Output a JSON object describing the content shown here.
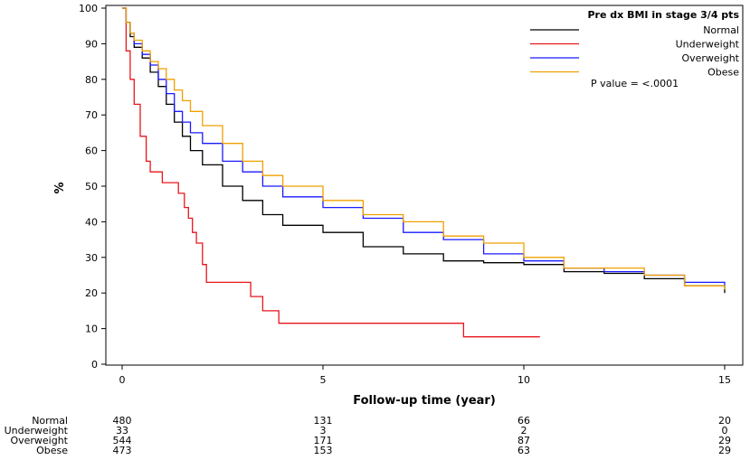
{
  "chart_data": {
    "type": "line",
    "subtype": "kaplan-meier survival curves (step)",
    "title": "",
    "xlabel": "Follow-up time (year)",
    "ylabel": "%",
    "xlim": [
      0,
      15
    ],
    "ylim": [
      0,
      100
    ],
    "xticks": [
      0,
      5,
      10,
      15
    ],
    "yticks": [
      0,
      10,
      20,
      30,
      40,
      50,
      60,
      70,
      80,
      90,
      100
    ],
    "legend": {
      "title": "Pre dx BMI in stage 3/4 pts",
      "placement": "top-right",
      "entries": [
        "Normal",
        "Underweight",
        "Overweight",
        "Obese"
      ]
    },
    "annotation": "P value = <.0001",
    "series": [
      {
        "name": "Normal",
        "color": "#000000",
        "points": [
          [
            0,
            100
          ],
          [
            0.1,
            96
          ],
          [
            0.2,
            92
          ],
          [
            0.3,
            89
          ],
          [
            0.5,
            86
          ],
          [
            0.7,
            82
          ],
          [
            0.9,
            78
          ],
          [
            1.1,
            73
          ],
          [
            1.3,
            68
          ],
          [
            1.5,
            64
          ],
          [
            1.7,
            60
          ],
          [
            2,
            56
          ],
          [
            2.5,
            50
          ],
          [
            3,
            46
          ],
          [
            3.5,
            42
          ],
          [
            4,
            39
          ],
          [
            5,
            37
          ],
          [
            6,
            33
          ],
          [
            7,
            31
          ],
          [
            8,
            29
          ],
          [
            9,
            28.5
          ],
          [
            10,
            28
          ],
          [
            11,
            26
          ],
          [
            12,
            25.5
          ],
          [
            13,
            24
          ],
          [
            14,
            22
          ],
          [
            15,
            20
          ]
        ]
      },
      {
        "name": "Underweight",
        "color": "#e8161b",
        "points": [
          [
            0,
            100
          ],
          [
            0.1,
            88
          ],
          [
            0.2,
            80
          ],
          [
            0.3,
            73
          ],
          [
            0.45,
            64
          ],
          [
            0.6,
            57
          ],
          [
            0.7,
            54
          ],
          [
            1.0,
            51
          ],
          [
            1.4,
            48
          ],
          [
            1.55,
            44
          ],
          [
            1.65,
            41
          ],
          [
            1.75,
            37
          ],
          [
            1.85,
            34
          ],
          [
            2.0,
            28
          ],
          [
            2.1,
            23
          ],
          [
            3.2,
            19
          ],
          [
            3.5,
            15
          ],
          [
            3.9,
            11.5
          ],
          [
            8.5,
            7.7
          ],
          [
            10.4,
            7.7
          ]
        ]
      },
      {
        "name": "Overweight",
        "color": "#1b1bff",
        "points": [
          [
            0,
            100
          ],
          [
            0.1,
            96
          ],
          [
            0.2,
            93
          ],
          [
            0.3,
            90
          ],
          [
            0.5,
            87
          ],
          [
            0.7,
            84
          ],
          [
            0.9,
            80
          ],
          [
            1.1,
            76
          ],
          [
            1.3,
            71
          ],
          [
            1.5,
            68
          ],
          [
            1.7,
            65
          ],
          [
            2,
            62
          ],
          [
            2.5,
            57
          ],
          [
            3,
            54
          ],
          [
            3.5,
            50
          ],
          [
            4,
            47
          ],
          [
            5,
            44
          ],
          [
            6,
            41
          ],
          [
            7,
            37
          ],
          [
            8,
            35
          ],
          [
            9,
            31
          ],
          [
            10,
            29
          ],
          [
            11,
            27
          ],
          [
            12,
            26
          ],
          [
            13,
            25
          ],
          [
            14,
            23
          ],
          [
            15,
            22
          ]
        ]
      },
      {
        "name": "Obese",
        "color": "#f0a000",
        "points": [
          [
            0,
            100
          ],
          [
            0.1,
            96
          ],
          [
            0.2,
            93
          ],
          [
            0.3,
            91
          ],
          [
            0.5,
            88
          ],
          [
            0.7,
            85
          ],
          [
            0.9,
            83
          ],
          [
            1.1,
            80
          ],
          [
            1.3,
            77
          ],
          [
            1.5,
            74
          ],
          [
            1.7,
            71
          ],
          [
            2,
            67
          ],
          [
            2.5,
            62
          ],
          [
            3,
            57
          ],
          [
            3.5,
            53
          ],
          [
            4,
            50
          ],
          [
            5,
            46
          ],
          [
            6,
            42
          ],
          [
            7,
            40
          ],
          [
            8,
            36
          ],
          [
            9,
            34
          ],
          [
            10,
            30
          ],
          [
            11,
            27
          ],
          [
            12,
            27
          ],
          [
            13,
            25
          ],
          [
            14,
            22
          ],
          [
            15,
            21
          ]
        ]
      }
    ]
  },
  "risk_table": {
    "times": [
      0,
      5,
      10,
      15
    ],
    "rows": [
      {
        "label": "Normal",
        "values": [
          "480",
          "131",
          "66",
          "20"
        ]
      },
      {
        "label": "Underweight",
        "values": [
          "33",
          "3",
          "2",
          "0"
        ]
      },
      {
        "label": "Overweight",
        "values": [
          "544",
          "171",
          "87",
          "29"
        ]
      },
      {
        "label": "Obese",
        "values": [
          "473",
          "153",
          "63",
          "29"
        ]
      }
    ]
  }
}
